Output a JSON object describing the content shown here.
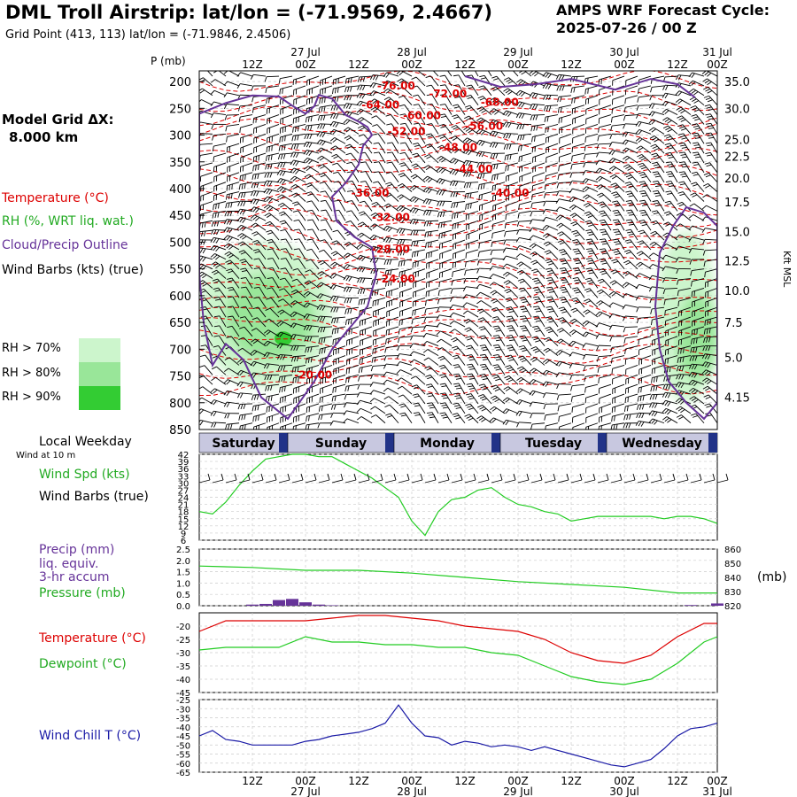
{
  "header": {
    "title": "DML Troll Airstrip:  lat/lon = (-71.9569, 2.4667)",
    "subtitle": "Grid Point (413, 113) lat/lon = (-71.9846, 2.4506)",
    "cycle_line1": "AMPS WRF Forecast Cycle:",
    "cycle_line2": "2025-07-26 / 00  Z"
  },
  "legend": {
    "grid_label": "Model Grid ΔX:",
    "grid_value": "8.000 km",
    "temperature": "Temperature (°C)",
    "rh": "RH (%, WRT liq. wat.)",
    "cloud": "Cloud/Precip Outline",
    "wind": "Wind Barbs (kts) (true)",
    "rh_levels": [
      {
        "label": "RH > 70%",
        "color": "#ccf5cc"
      },
      {
        "label": "RH > 80%",
        "color": "#99e699"
      },
      {
        "label": "RH > 90%",
        "color": "#33cc33"
      }
    ]
  },
  "time_axis": {
    "hour_labels": [
      "12Z",
      "00Z",
      "12Z",
      "00Z",
      "12Z",
      "00Z",
      "12Z",
      "00Z",
      "12Z",
      "00Z"
    ],
    "date_labels_top": [
      "27 Jul",
      "28 Jul",
      "29 Jul",
      "30 Jul",
      "31 Jul"
    ],
    "date_labels_bottom": [
      "27 Jul",
      "28 Jul",
      "29 Jul",
      "30 Jul",
      "31 Jul"
    ]
  },
  "weekdays": {
    "title": "Local Weekday",
    "days": [
      "Saturday",
      "Sunday",
      "Monday",
      "Tuesday",
      "Wednesday"
    ]
  },
  "panels": {
    "wind_note": "Wind at 10 m",
    "wind_spd_label": "Wind Spd (kts)",
    "wind_barbs_label": "Wind Barbs (true)",
    "precip_label_1": "Precip (mm)",
    "precip_label_2": "liq. equiv.",
    "precip_label_3": "3-hr accum",
    "pressure_label": "Pressure (mb)",
    "pressure_unit": "(mb)",
    "temp_label": "Temperature (°C)",
    "dew_label": "Dewpoint (°C)",
    "windchill_label": "Wind Chill T (°C)"
  },
  "colors": {
    "temperature": "#dd0000",
    "rh": "#22cc22",
    "cloud": "#663399",
    "wind": "#000000",
    "windchill": "#1a1aa6",
    "precip": "#663399"
  },
  "chart_data": [
    {
      "type": "heatmap",
      "name": "cross-section",
      "y_label": "P (mb)",
      "y_right_label": "Kft MSL",
      "pressure_levels": [
        200,
        250,
        300,
        350,
        400,
        450,
        500,
        550,
        600,
        650,
        700,
        750,
        800,
        850
      ],
      "ylim": [
        850,
        180
      ],
      "height_ticks": [
        {
          "p": 200,
          "label": "35.0"
        },
        {
          "p": 250,
          "label": "30.0"
        },
        {
          "p": 308,
          "label": "25.0"
        },
        {
          "p": 340,
          "label": "22.5"
        },
        {
          "p": 380,
          "label": "20.0"
        },
        {
          "p": 425,
          "label": "17.5"
        },
        {
          "p": 480,
          "label": "15.0"
        },
        {
          "p": 535,
          "label": "12.5"
        },
        {
          "p": 590,
          "label": "10.0"
        },
        {
          "p": 650,
          "label": "7.5"
        },
        {
          "p": 715,
          "label": "5.0"
        },
        {
          "p": 790,
          "label": "4.15"
        }
      ],
      "temperature_labels": [
        {
          "label": "-76.00",
          "x": 38,
          "p": 215
        },
        {
          "label": "-72.00",
          "x": 48,
          "p": 230
        },
        {
          "label": "-68.00",
          "x": 58,
          "p": 245
        },
        {
          "label": "-64.00",
          "x": 35,
          "p": 250
        },
        {
          "label": "-60.00",
          "x": 43,
          "p": 270
        },
        {
          "label": "-56.00",
          "x": 55,
          "p": 290
        },
        {
          "label": "-52.00",
          "x": 40,
          "p": 300
        },
        {
          "label": "-48.00",
          "x": 50,
          "p": 330
        },
        {
          "label": "-44.00",
          "x": 53,
          "p": 370
        },
        {
          "label": "-40.00",
          "x": 60,
          "p": 415
        },
        {
          "label": "-36.00",
          "x": 33,
          "p": 415
        },
        {
          "label": "-32.00",
          "x": 37,
          "p": 460
        },
        {
          "label": "-28.00",
          "x": 37,
          "p": 520
        },
        {
          "label": "-24.00",
          "x": 38,
          "p": 575
        },
        {
          "label": "-20.00",
          "x": 22,
          "p": 755
        }
      ]
    },
    {
      "type": "line",
      "name": "wind speed 10 m",
      "ylim": [
        6,
        42
      ],
      "yticks": [
        6,
        9,
        12,
        15,
        18,
        21,
        24,
        27,
        30,
        33,
        36,
        39,
        42
      ],
      "x_hours": [
        0,
        3,
        6,
        9,
        12,
        15,
        18,
        21,
        24,
        27,
        30,
        33,
        36,
        39,
        42,
        45,
        48,
        51,
        54,
        57,
        60,
        63,
        66,
        69,
        72,
        75,
        78,
        81,
        84,
        87,
        90,
        93,
        96,
        99,
        102,
        105,
        108,
        111,
        114,
        117
      ],
      "values": [
        18,
        17,
        22,
        29,
        35,
        40,
        41,
        42,
        42,
        41,
        41,
        38,
        35,
        32,
        28,
        24,
        14,
        8,
        18,
        23,
        24,
        27,
        28,
        24,
        21,
        20,
        18,
        17,
        14,
        15,
        16,
        16,
        16,
        16,
        16,
        15,
        16,
        16,
        15,
        13
      ]
    },
    {
      "type": "bar",
      "name": "precip 3-hr accum",
      "ylim": [
        0,
        2.5
      ],
      "yticks": [
        0.0,
        0.5,
        1.0,
        1.5,
        2.0,
        2.5
      ],
      "x_hours": [
        12,
        15,
        18,
        21,
        24,
        27,
        30,
        111,
        117
      ],
      "values": [
        0.05,
        0.08,
        0.25,
        0.3,
        0.15,
        0.05,
        0.02,
        0.03,
        0.1
      ]
    },
    {
      "type": "line",
      "name": "pressure",
      "ylim": [
        820,
        860
      ],
      "yticks": [
        820,
        830,
        840,
        850,
        860
      ],
      "x_hours": [
        0,
        12,
        24,
        36,
        48,
        60,
        72,
        84,
        96,
        108,
        117
      ],
      "values": [
        848,
        847,
        845,
        845,
        843,
        840,
        837,
        835,
        833,
        829,
        829
      ]
    },
    {
      "type": "line",
      "name": "temperature and dewpoint",
      "ylim": [
        -45,
        -15
      ],
      "yticks": [
        -45,
        -40,
        -35,
        -30,
        -25,
        -20
      ],
      "x_hours": [
        0,
        6,
        12,
        18,
        24,
        30,
        36,
        42,
        48,
        54,
        60,
        66,
        72,
        78,
        84,
        90,
        96,
        102,
        108,
        114,
        117
      ],
      "series": [
        {
          "name": "Temperature",
          "values": [
            -22,
            -18,
            -18,
            -18,
            -18,
            -17,
            -16,
            -16,
            -17,
            -18,
            -20,
            -21,
            -22,
            -25,
            -30,
            -33,
            -34,
            -31,
            -24,
            -19,
            -19
          ]
        },
        {
          "name": "Dewpoint",
          "values": [
            -29,
            -28,
            -28,
            -28,
            -24,
            -26,
            -26,
            -27,
            -27,
            -28,
            -28,
            -30,
            -31,
            -35,
            -39,
            -41,
            -42,
            -40,
            -34,
            -26,
            -24
          ]
        }
      ]
    },
    {
      "type": "line",
      "name": "wind chill",
      "ylim": [
        -65,
        -25
      ],
      "yticks": [
        -65,
        -60,
        -55,
        -50,
        -45,
        -40,
        -35,
        -30,
        -25
      ],
      "x_hours": [
        0,
        3,
        6,
        9,
        12,
        15,
        18,
        21,
        24,
        27,
        30,
        33,
        36,
        39,
        42,
        45,
        48,
        51,
        54,
        57,
        60,
        63,
        66,
        69,
        72,
        75,
        78,
        81,
        84,
        87,
        90,
        93,
        96,
        99,
        102,
        105,
        108,
        111,
        114,
        117
      ],
      "values": [
        -45,
        -42,
        -47,
        -48,
        -50,
        -50,
        -50,
        -50,
        -48,
        -47,
        -45,
        -44,
        -43,
        -41,
        -38,
        -28,
        -38,
        -45,
        -46,
        -50,
        -48,
        -49,
        -51,
        -50,
        -51,
        -53,
        -51,
        -53,
        -55,
        -57,
        -59,
        -61,
        -62,
        -60,
        -58,
        -52,
        -45,
        -41,
        -40,
        -38
      ]
    }
  ]
}
